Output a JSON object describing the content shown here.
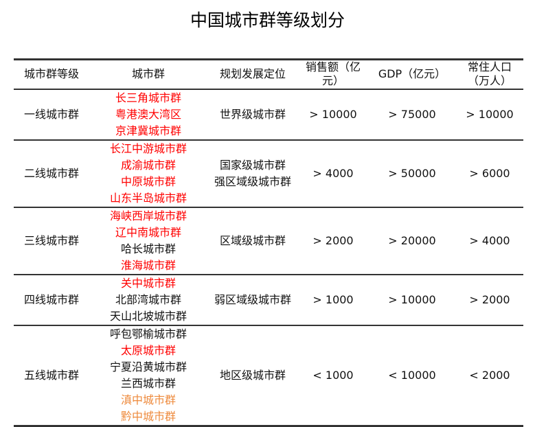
{
  "title": "中国城市群等级划分",
  "colors": {
    "highlight_red": "#ff0000",
    "highlight_orange": "#ee8a3c",
    "text": "#111111"
  },
  "headers": [
    "城市群等级",
    "城市群",
    "规划发展定位",
    "销售额（亿元）",
    "GDP（亿元）",
    "常住人口（万人）"
  ],
  "rows": [
    {
      "level": "一线城市群",
      "clusters": [
        {
          "name": "长三角城市群",
          "color": "red"
        },
        {
          "name": "粤港澳大湾区",
          "color": "red"
        },
        {
          "name": "京津冀城市群",
          "color": "red"
        }
      ],
      "positioning": [
        "世界级城市群"
      ],
      "sales": "> 10000",
      "gdp": "> 75000",
      "population": "> 10000"
    },
    {
      "level": "二线城市群",
      "clusters": [
        {
          "name": "长江中游城市群",
          "color": "red"
        },
        {
          "name": "成渝城市群",
          "color": "red"
        },
        {
          "name": "中原城市群",
          "color": "red"
        },
        {
          "name": "山东半岛城市群",
          "color": "red"
        }
      ],
      "positioning": [
        "国家级城市群",
        "强区域级城市群"
      ],
      "sales": "> 4000",
      "gdp": "> 50000",
      "population": "> 6000"
    },
    {
      "level": "三线城市群",
      "clusters": [
        {
          "name": "海峡西岸城市群",
          "color": "red"
        },
        {
          "name": "辽中南城市群",
          "color": "red"
        },
        {
          "name": "哈长城市群",
          "color": "black"
        },
        {
          "name": "淮海城市群",
          "color": "red"
        }
      ],
      "positioning": [
        "区域级城市群"
      ],
      "sales": "> 2000",
      "gdp": "> 20000",
      "population": "> 4000"
    },
    {
      "level": "四线城市群",
      "clusters": [
        {
          "name": "关中城市群",
          "color": "red"
        },
        {
          "name": "北部湾城市群",
          "color": "black"
        },
        {
          "name": "天山北坡城市群",
          "color": "black"
        }
      ],
      "positioning": [
        "弱区域级城市群"
      ],
      "sales": "> 1000",
      "gdp": "> 10000",
      "population": "> 2000"
    },
    {
      "level": "五线城市群",
      "clusters": [
        {
          "name": "呼包鄂榆城市群",
          "color": "black"
        },
        {
          "name": "太原城市群",
          "color": "red"
        },
        {
          "name": "宁夏沿黄城市群",
          "color": "black"
        },
        {
          "name": "兰西城市群",
          "color": "black"
        },
        {
          "name": "滇中城市群",
          "color": "orange"
        },
        {
          "name": "黔中城市群",
          "color": "orange"
        }
      ],
      "positioning": [
        "地区级城市群"
      ],
      "sales": "< 1000",
      "gdp": "< 10000",
      "population": "< 2000"
    }
  ]
}
